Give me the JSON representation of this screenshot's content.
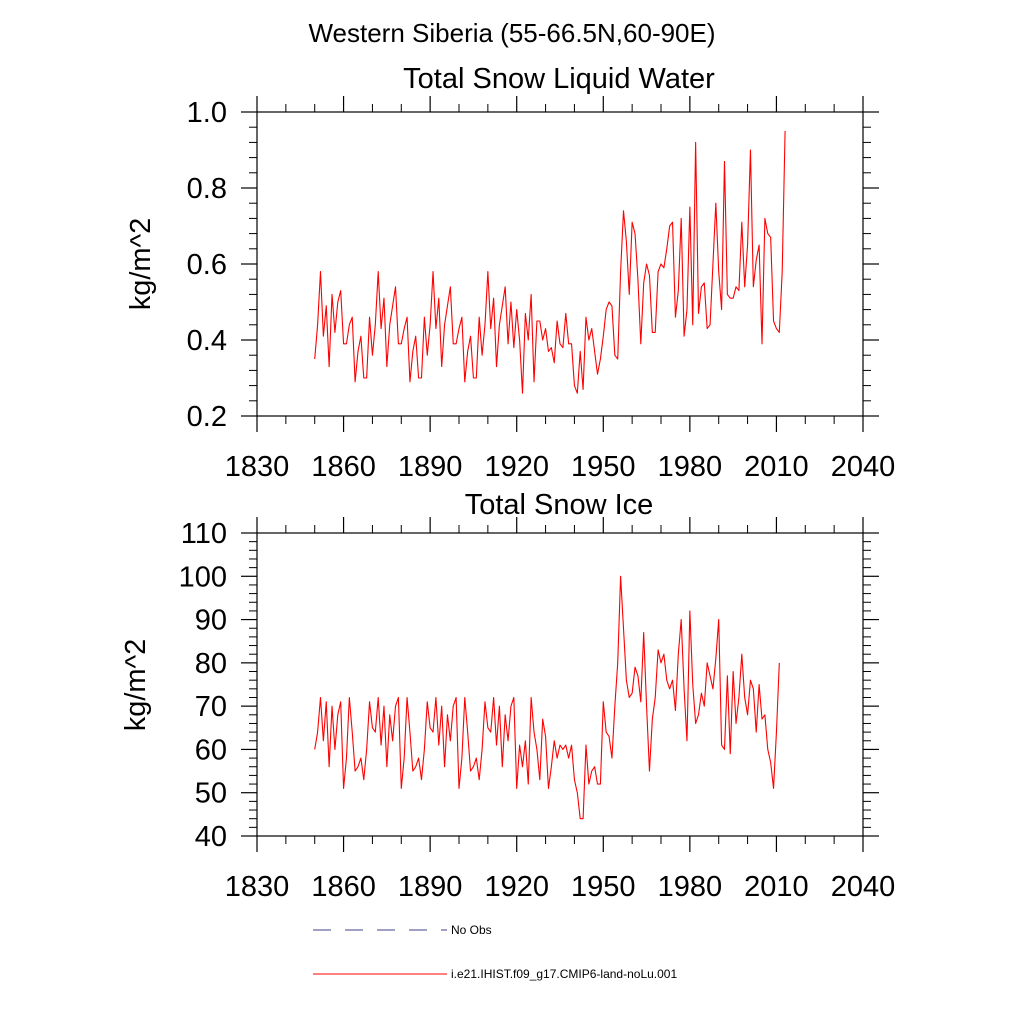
{
  "figure": {
    "title": "Western Siberia (55-66.5N,60-90E)"
  },
  "legend": {
    "entries": [
      {
        "label": "No Obs",
        "color": "#3f3f8f",
        "style": "dashed"
      },
      {
        "label": "i.e21.IHIST.f09_g17.CMIP6-land-noLu.001",
        "color": "#ff0000",
        "style": "solid"
      }
    ]
  },
  "chart_data": [
    {
      "type": "line",
      "title": "Total Snow Liquid Water",
      "ylabel": "kg/m^2",
      "xlabel": "",
      "xlim": [
        1830,
        2040
      ],
      "ylim": [
        0.2,
        1.0
      ],
      "xticks": [
        1830,
        1860,
        1890,
        1920,
        1950,
        1980,
        2010,
        2040
      ],
      "yticks": [
        0.2,
        0.4,
        0.6,
        0.8,
        1.0
      ],
      "ytick_labels": [
        "0.2",
        "0.4",
        "0.6",
        "0.8",
        "1.0"
      ],
      "grid": false,
      "series": [
        {
          "name": "i.e21.IHIST.f09_g17.CMIP6-land-noLu.001",
          "color": "#ff0000",
          "x_start": 1850,
          "x_step": 1,
          "values": [
            0.35,
            0.44,
            0.58,
            0.41,
            0.49,
            0.33,
            0.52,
            0.42,
            0.5,
            0.53,
            0.39,
            0.39,
            0.44,
            0.46,
            0.29,
            0.37,
            0.41,
            0.3,
            0.3,
            0.46,
            0.36,
            0.44,
            0.58,
            0.43,
            0.51,
            0.33,
            0.44,
            0.49,
            0.54,
            0.39,
            0.39,
            0.43,
            0.46,
            0.29,
            0.37,
            0.41,
            0.3,
            0.3,
            0.46,
            0.36,
            0.44,
            0.58,
            0.43,
            0.51,
            0.33,
            0.44,
            0.49,
            0.54,
            0.39,
            0.39,
            0.43,
            0.46,
            0.29,
            0.37,
            0.41,
            0.3,
            0.3,
            0.46,
            0.36,
            0.44,
            0.58,
            0.43,
            0.51,
            0.33,
            0.44,
            0.49,
            0.54,
            0.39,
            0.5,
            0.38,
            0.48,
            0.4,
            0.26,
            0.47,
            0.4,
            0.52,
            0.29,
            0.45,
            0.45,
            0.4,
            0.43,
            0.37,
            0.38,
            0.34,
            0.45,
            0.39,
            0.38,
            0.47,
            0.39,
            0.39,
            0.28,
            0.26,
            0.37,
            0.27,
            0.46,
            0.4,
            0.43,
            0.37,
            0.31,
            0.35,
            0.41,
            0.48,
            0.5,
            0.49,
            0.36,
            0.35,
            0.58,
            0.74,
            0.66,
            0.52,
            0.71,
            0.68,
            0.56,
            0.39,
            0.55,
            0.6,
            0.57,
            0.42,
            0.42,
            0.58,
            0.6,
            0.59,
            0.64,
            0.7,
            0.71,
            0.46,
            0.53,
            0.72,
            0.41,
            0.48,
            0.75,
            0.44,
            0.92,
            0.47,
            0.54,
            0.55,
            0.43,
            0.44,
            0.6,
            0.76,
            0.58,
            0.48,
            0.87,
            0.52,
            0.51,
            0.51,
            0.54,
            0.53,
            0.71,
            0.54,
            0.65,
            0.9,
            0.54,
            0.61,
            0.65,
            0.39,
            0.72,
            0.68,
            0.67,
            0.45,
            0.43,
            0.42,
            0.58,
            0.95
          ]
        }
      ]
    },
    {
      "type": "line",
      "title": "Total Snow Ice",
      "ylabel": "kg/m^2",
      "xlabel": "",
      "xlim": [
        1830,
        2040
      ],
      "ylim": [
        40,
        110
      ],
      "xticks": [
        1830,
        1860,
        1890,
        1920,
        1950,
        1980,
        2010,
        2040
      ],
      "yticks": [
        40,
        50,
        60,
        70,
        80,
        90,
        100,
        110
      ],
      "ytick_labels": [
        "40",
        "50",
        "60",
        "70",
        "80",
        "90",
        "100",
        "110"
      ],
      "grid": false,
      "series": [
        {
          "name": "i.e21.IHIST.f09_g17.CMIP6-land-noLu.001",
          "color": "#ff0000",
          "x_start": 1850,
          "x_step": 1,
          "values": [
            60,
            64,
            72,
            62,
            71,
            56,
            70,
            60,
            68,
            71,
            51,
            58,
            72,
            64,
            55,
            56,
            58,
            53,
            60,
            71,
            65,
            64,
            72,
            61,
            70,
            56,
            68,
            62,
            70,
            72,
            51,
            58,
            72,
            64,
            55,
            56,
            58,
            53,
            60,
            71,
            65,
            64,
            72,
            61,
            70,
            56,
            68,
            62,
            70,
            72,
            51,
            58,
            72,
            64,
            55,
            56,
            58,
            53,
            60,
            71,
            65,
            64,
            72,
            61,
            70,
            56,
            68,
            62,
            70,
            72,
            51,
            61,
            56,
            62,
            52,
            72,
            64,
            60,
            53,
            67,
            63,
            51,
            56,
            62,
            58,
            61,
            60,
            61,
            58,
            61,
            53,
            50,
            44,
            44,
            61,
            52,
            55,
            56,
            52,
            52,
            71,
            64,
            63,
            58,
            70,
            80,
            100,
            88,
            76,
            72,
            73,
            79,
            77,
            71,
            87,
            70,
            55,
            67,
            72,
            83,
            80,
            82,
            76,
            74,
            76,
            69,
            82,
            90,
            74,
            62,
            92,
            75,
            66,
            68,
            73,
            70,
            80,
            77,
            74,
            81,
            90,
            61,
            60,
            77,
            59,
            78,
            66,
            72,
            82,
            72,
            68,
            76,
            74,
            64,
            75,
            67,
            68,
            60,
            57,
            51,
            64,
            80
          ]
        }
      ]
    }
  ]
}
